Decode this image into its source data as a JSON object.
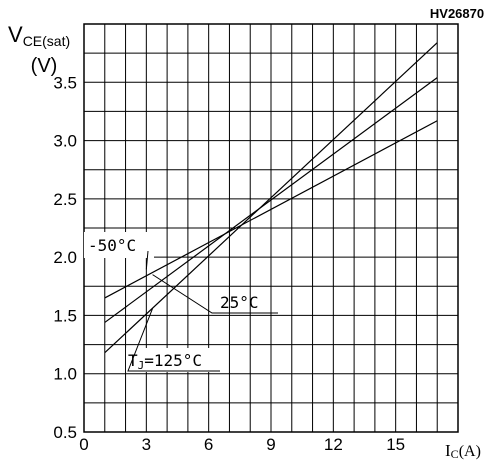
{
  "chart_data": {
    "type": "line",
    "code": "HV26870",
    "ylabel": {
      "main": "V",
      "sub": "CE(sat)",
      "unit": "(V)"
    },
    "xlabel": {
      "main": "I",
      "sub": "C",
      "unit": "(A)"
    },
    "xlim": [
      0,
      18
    ],
    "ylim": [
      0.5,
      4.0
    ],
    "x_ticks": [
      0,
      3,
      6,
      9,
      12,
      15
    ],
    "x_tick_labels": [
      "0",
      "3",
      "6",
      "9",
      "12",
      "15"
    ],
    "y_ticks": [
      0.5,
      1.0,
      1.5,
      2.0,
      2.5,
      3.0,
      3.5
    ],
    "y_tick_labels": [
      "0.5",
      "1.0",
      "1.5",
      "2.0",
      "2.5",
      "3.0",
      "3.5"
    ],
    "grid": true,
    "series": [
      {
        "name": "-50°C",
        "x": [
          1,
          17
        ],
        "y": [
          1.65,
          3.17
        ]
      },
      {
        "name": "25°C",
        "x": [
          1,
          17
        ],
        "y": [
          1.44,
          3.54
        ]
      },
      {
        "name": "TJ=125°C",
        "name_main": "T",
        "name_sub": "J",
        "name_rest": "=125°C",
        "x": [
          1,
          17
        ],
        "y": [
          1.18,
          3.84
        ]
      }
    ],
    "annotations": {
      "cold": {
        "text": "-50°C",
        "target": [
          3.0,
          1.895
        ]
      },
      "room": {
        "text": "25°C",
        "target": [
          3.3,
          1.85
        ]
      },
      "hot": {
        "text": "=125°C",
        "target": [
          3.3,
          1.56
        ]
      }
    }
  }
}
